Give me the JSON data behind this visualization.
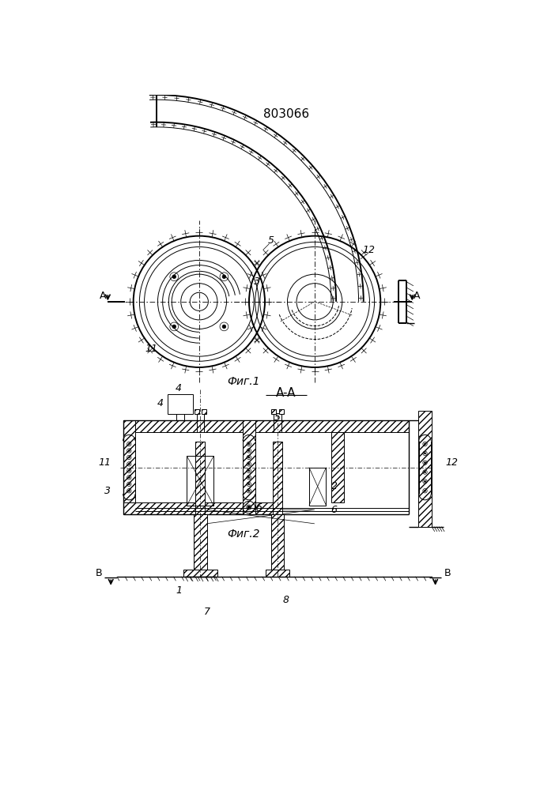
{
  "title": "803066",
  "fig1_label": "Фиг.1",
  "fig2_label": "Фиг.2",
  "section_label": "A-A",
  "bg_color": "#ffffff",
  "line_color": "#000000"
}
